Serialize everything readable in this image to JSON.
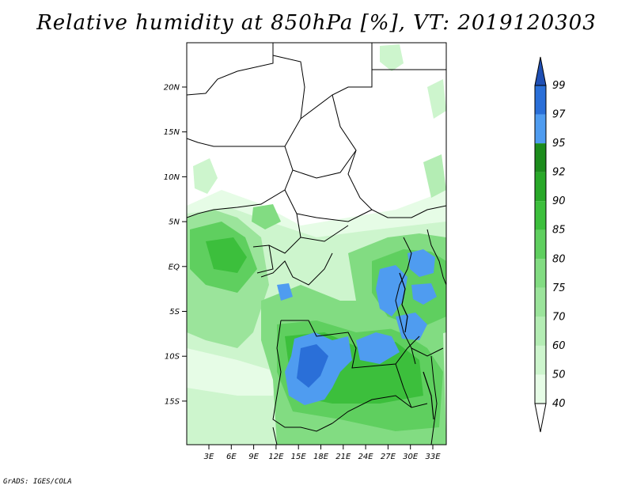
{
  "title": "Relative humidity at 850hPa [%], VT: 2019120303",
  "credit": "GrADS: IGES/COLA",
  "lat_labels": [
    "20N",
    "15N",
    "10N",
    "5N",
    "EQ",
    "5S",
    "10S",
    "15S"
  ],
  "lon_labels": [
    "3E",
    "6E",
    "9E",
    "12E",
    "15E",
    "18E",
    "21E",
    "24E",
    "27E",
    "30E",
    "33E"
  ],
  "colorbar": {
    "levels": [
      "40",
      "50",
      "60",
      "70",
      "75",
      "80",
      "85",
      "90",
      "92",
      "95",
      "97",
      "99"
    ],
    "colors": [
      "#ffffff",
      "#e6fce6",
      "#cdf5cd",
      "#b4edb4",
      "#9be49b",
      "#82dc82",
      "#5fcf5f",
      "#3cbf3c",
      "#28a828",
      "#1c8c1c",
      "#4f9cf0",
      "#2a6fd8",
      "#1f4fb4"
    ]
  }
}
